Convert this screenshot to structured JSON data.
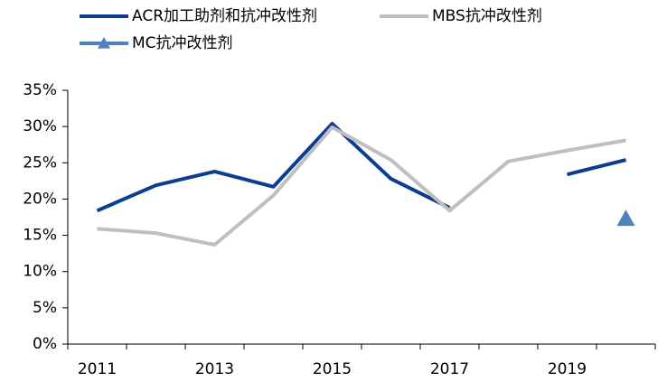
{
  "chart_data": {
    "type": "line",
    "categories": [
      "2011",
      null,
      "2013",
      null,
      "2015",
      null,
      "2017",
      null,
      "2019",
      null
    ],
    "series": [
      {
        "name": "ACR加工助剂和抗冲改性剂",
        "color": "#0b3d91",
        "values": [
          18.4,
          21.9,
          23.8,
          21.7,
          30.4,
          22.8,
          18.8,
          null,
          23.4,
          25.4
        ]
      },
      {
        "name": "MBS抗冲改性剂",
        "color": "#bfbfbf",
        "values": [
          15.9,
          15.3,
          13.7,
          20.5,
          29.9,
          25.4,
          18.4,
          25.2,
          26.7,
          28.1
        ]
      },
      {
        "name": "MC抗冲改性剂",
        "color": "#4f81bd",
        "marker": "triangle",
        "values": [
          null,
          null,
          null,
          null,
          null,
          null,
          null,
          null,
          null,
          17.3
        ]
      }
    ],
    "ylim": [
      0,
      35
    ],
    "yticks": [
      {
        "value": 0,
        "label": "0%"
      },
      {
        "value": 5,
        "label": "5%"
      },
      {
        "value": 10,
        "label": "10%"
      },
      {
        "value": 15,
        "label": "15%"
      },
      {
        "value": 20,
        "label": "20%"
      },
      {
        "value": 25,
        "label": "25%"
      },
      {
        "value": 30,
        "label": "30%"
      },
      {
        "value": 35,
        "label": "35%"
      }
    ],
    "grid": false
  }
}
